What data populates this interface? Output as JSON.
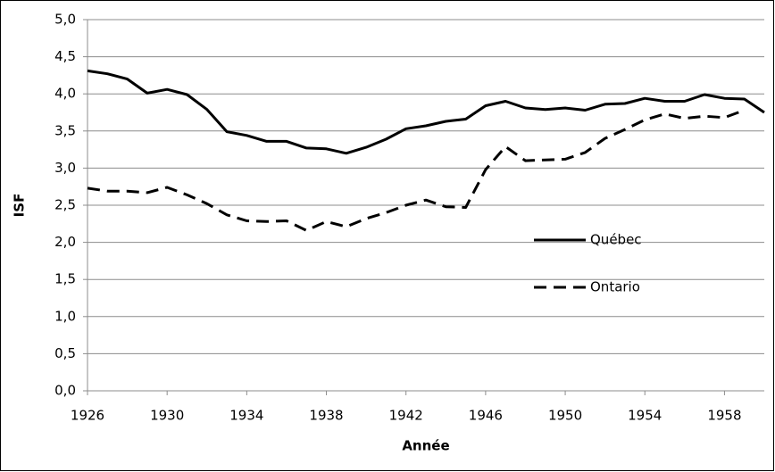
{
  "chart_data": {
    "type": "line",
    "x_label": "Année",
    "y_label": "ISF",
    "x": [
      1926,
      1927,
      1928,
      1929,
      1930,
      1931,
      1932,
      1933,
      1934,
      1935,
      1936,
      1937,
      1938,
      1939,
      1940,
      1941,
      1942,
      1943,
      1944,
      1945,
      1946,
      1947,
      1948,
      1949,
      1950,
      1951,
      1952,
      1953,
      1954,
      1955,
      1956,
      1957,
      1958,
      1959,
      1960
    ],
    "series": [
      {
        "name": "Québec",
        "color": "#000000",
        "dash": "solid",
        "values": [
          4.31,
          4.27,
          4.2,
          4.01,
          4.06,
          3.99,
          3.79,
          3.49,
          3.44,
          3.36,
          3.36,
          3.27,
          3.26,
          3.2,
          3.28,
          3.39,
          3.53,
          3.57,
          3.63,
          3.66,
          3.84,
          3.9,
          3.81,
          3.79,
          3.81,
          3.78,
          3.86,
          3.87,
          3.94,
          3.9,
          3.9,
          3.99,
          3.94,
          3.93,
          3.75
        ]
      },
      {
        "name": "Ontario",
        "color": "#000000",
        "dash": "dashed",
        "values": [
          2.73,
          2.69,
          2.69,
          2.67,
          2.74,
          2.64,
          2.52,
          2.37,
          2.29,
          2.28,
          2.29,
          2.16,
          2.28,
          2.21,
          2.32,
          2.4,
          2.5,
          2.57,
          2.48,
          2.47,
          2.98,
          3.29,
          3.1,
          3.11,
          3.12,
          3.21,
          3.4,
          3.52,
          3.65,
          3.73,
          3.67,
          3.7,
          3.68,
          3.78,
          null
        ]
      }
    ],
    "xlim": [
      1926,
      1960
    ],
    "xticks": [
      1926,
      1930,
      1934,
      1938,
      1942,
      1946,
      1950,
      1954,
      1958
    ],
    "ylim": [
      0,
      5
    ],
    "yticks": [
      {
        "value": 0,
        "label": "0,0"
      },
      {
        "value": 0.5,
        "label": "0,5"
      },
      {
        "value": 1,
        "label": "1,0"
      },
      {
        "value": 1.5,
        "label": "1,5"
      },
      {
        "value": 2,
        "label": "2,0"
      },
      {
        "value": 2.5,
        "label": "2,5"
      },
      {
        "value": 3,
        "label": "3,0"
      },
      {
        "value": 3.5,
        "label": "3,5"
      },
      {
        "value": 4,
        "label": "4,0"
      },
      {
        "value": 4.5,
        "label": "4,5"
      },
      {
        "value": 5,
        "label": "5,0"
      }
    ],
    "grid": true,
    "legend": "center right"
  }
}
